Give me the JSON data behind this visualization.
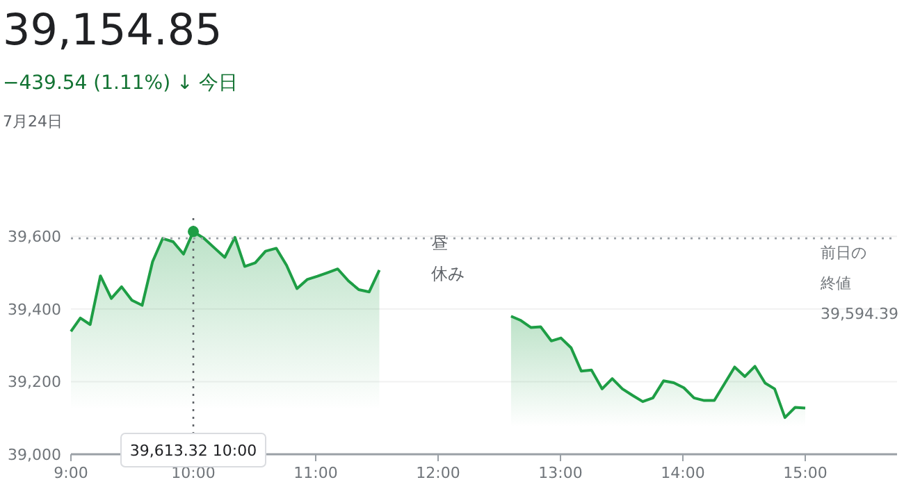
{
  "chart_data": {
    "type": "area",
    "title": "39,154.85",
    "subtitle": "−439.54 (1.11%) ↓ 今日",
    "annotations": [
      "7月24日",
      "39,613.32  10:00",
      "昼",
      "休み",
      "前日の",
      "終値",
      "39,594.39"
    ],
    "series": [
      {
        "color": "#1e9e45",
        "x": [
          9.0,
          9.077,
          9.157,
          9.241,
          9.33,
          9.414,
          9.498,
          9.582,
          9.667,
          9.75,
          9.835,
          9.92,
          10.0,
          10.088,
          10.172,
          10.257,
          10.34,
          10.42,
          10.506,
          10.59,
          10.678,
          10.762,
          10.847,
          10.93,
          11.015,
          11.1,
          11.18,
          11.268,
          11.352,
          11.437,
          11.52
        ],
        "values": [
          39338,
          39375,
          39357,
          39491,
          39429,
          39461,
          39424,
          39410,
          39530,
          39594,
          39585,
          39551,
          39613,
          39594,
          39568,
          39542,
          39597,
          39517,
          39527,
          39559,
          39567,
          39520,
          39456,
          39481,
          39490,
          39500,
          39510,
          39477,
          39453,
          39447,
          39507
        ]
      },
      {
        "color": "#1e9e45",
        "x": [
          12.596,
          12.672,
          12.758,
          12.838,
          12.925,
          13.004,
          13.087,
          13.17,
          13.253,
          13.34,
          13.423,
          13.506,
          13.589,
          13.672,
          13.755,
          13.842,
          13.925,
          14.008,
          14.091,
          14.174,
          14.257,
          14.34,
          14.423,
          14.506,
          14.589,
          14.672,
          14.75,
          14.834,
          14.917,
          15.0
        ],
        "values": [
          39380,
          39369,
          39349,
          39351,
          39312,
          39320,
          39293,
          39229,
          39232,
          39180,
          39208,
          39180,
          39162,
          39145,
          39155,
          39202,
          39197,
          39183,
          39155,
          39148,
          39148,
          39194,
          39240,
          39214,
          39242,
          39196,
          39180,
          39101,
          39129,
          39127
        ]
      }
    ],
    "xlim": [
      9,
      15.75
    ],
    "xticks": [
      {
        "value": 9,
        "label": "9:00"
      },
      {
        "value": 10,
        "label": "10:00"
      },
      {
        "value": 11,
        "label": "11:00"
      },
      {
        "value": 12,
        "label": "12:00"
      },
      {
        "value": 13,
        "label": "13:00"
      },
      {
        "value": 14,
        "label": "14:00"
      },
      {
        "value": 15,
        "label": "15:00"
      }
    ],
    "ylim": [
      39000,
      39650
    ],
    "yticks": [
      {
        "value": 39000,
        "label": "39,000"
      },
      {
        "value": 39200,
        "label": "39,200"
      },
      {
        "value": 39400,
        "label": "39,400"
      },
      {
        "value": 39600,
        "label": "39,600"
      }
    ],
    "grid": "y",
    "ref_lines": [
      {
        "axis": "y",
        "value": 39594.39,
        "color": "#9aa0a6",
        "line_style": "dotted"
      },
      {
        "axis": "x",
        "value": 10,
        "color": "#5f6368",
        "line_style": "dotted"
      }
    ]
  }
}
